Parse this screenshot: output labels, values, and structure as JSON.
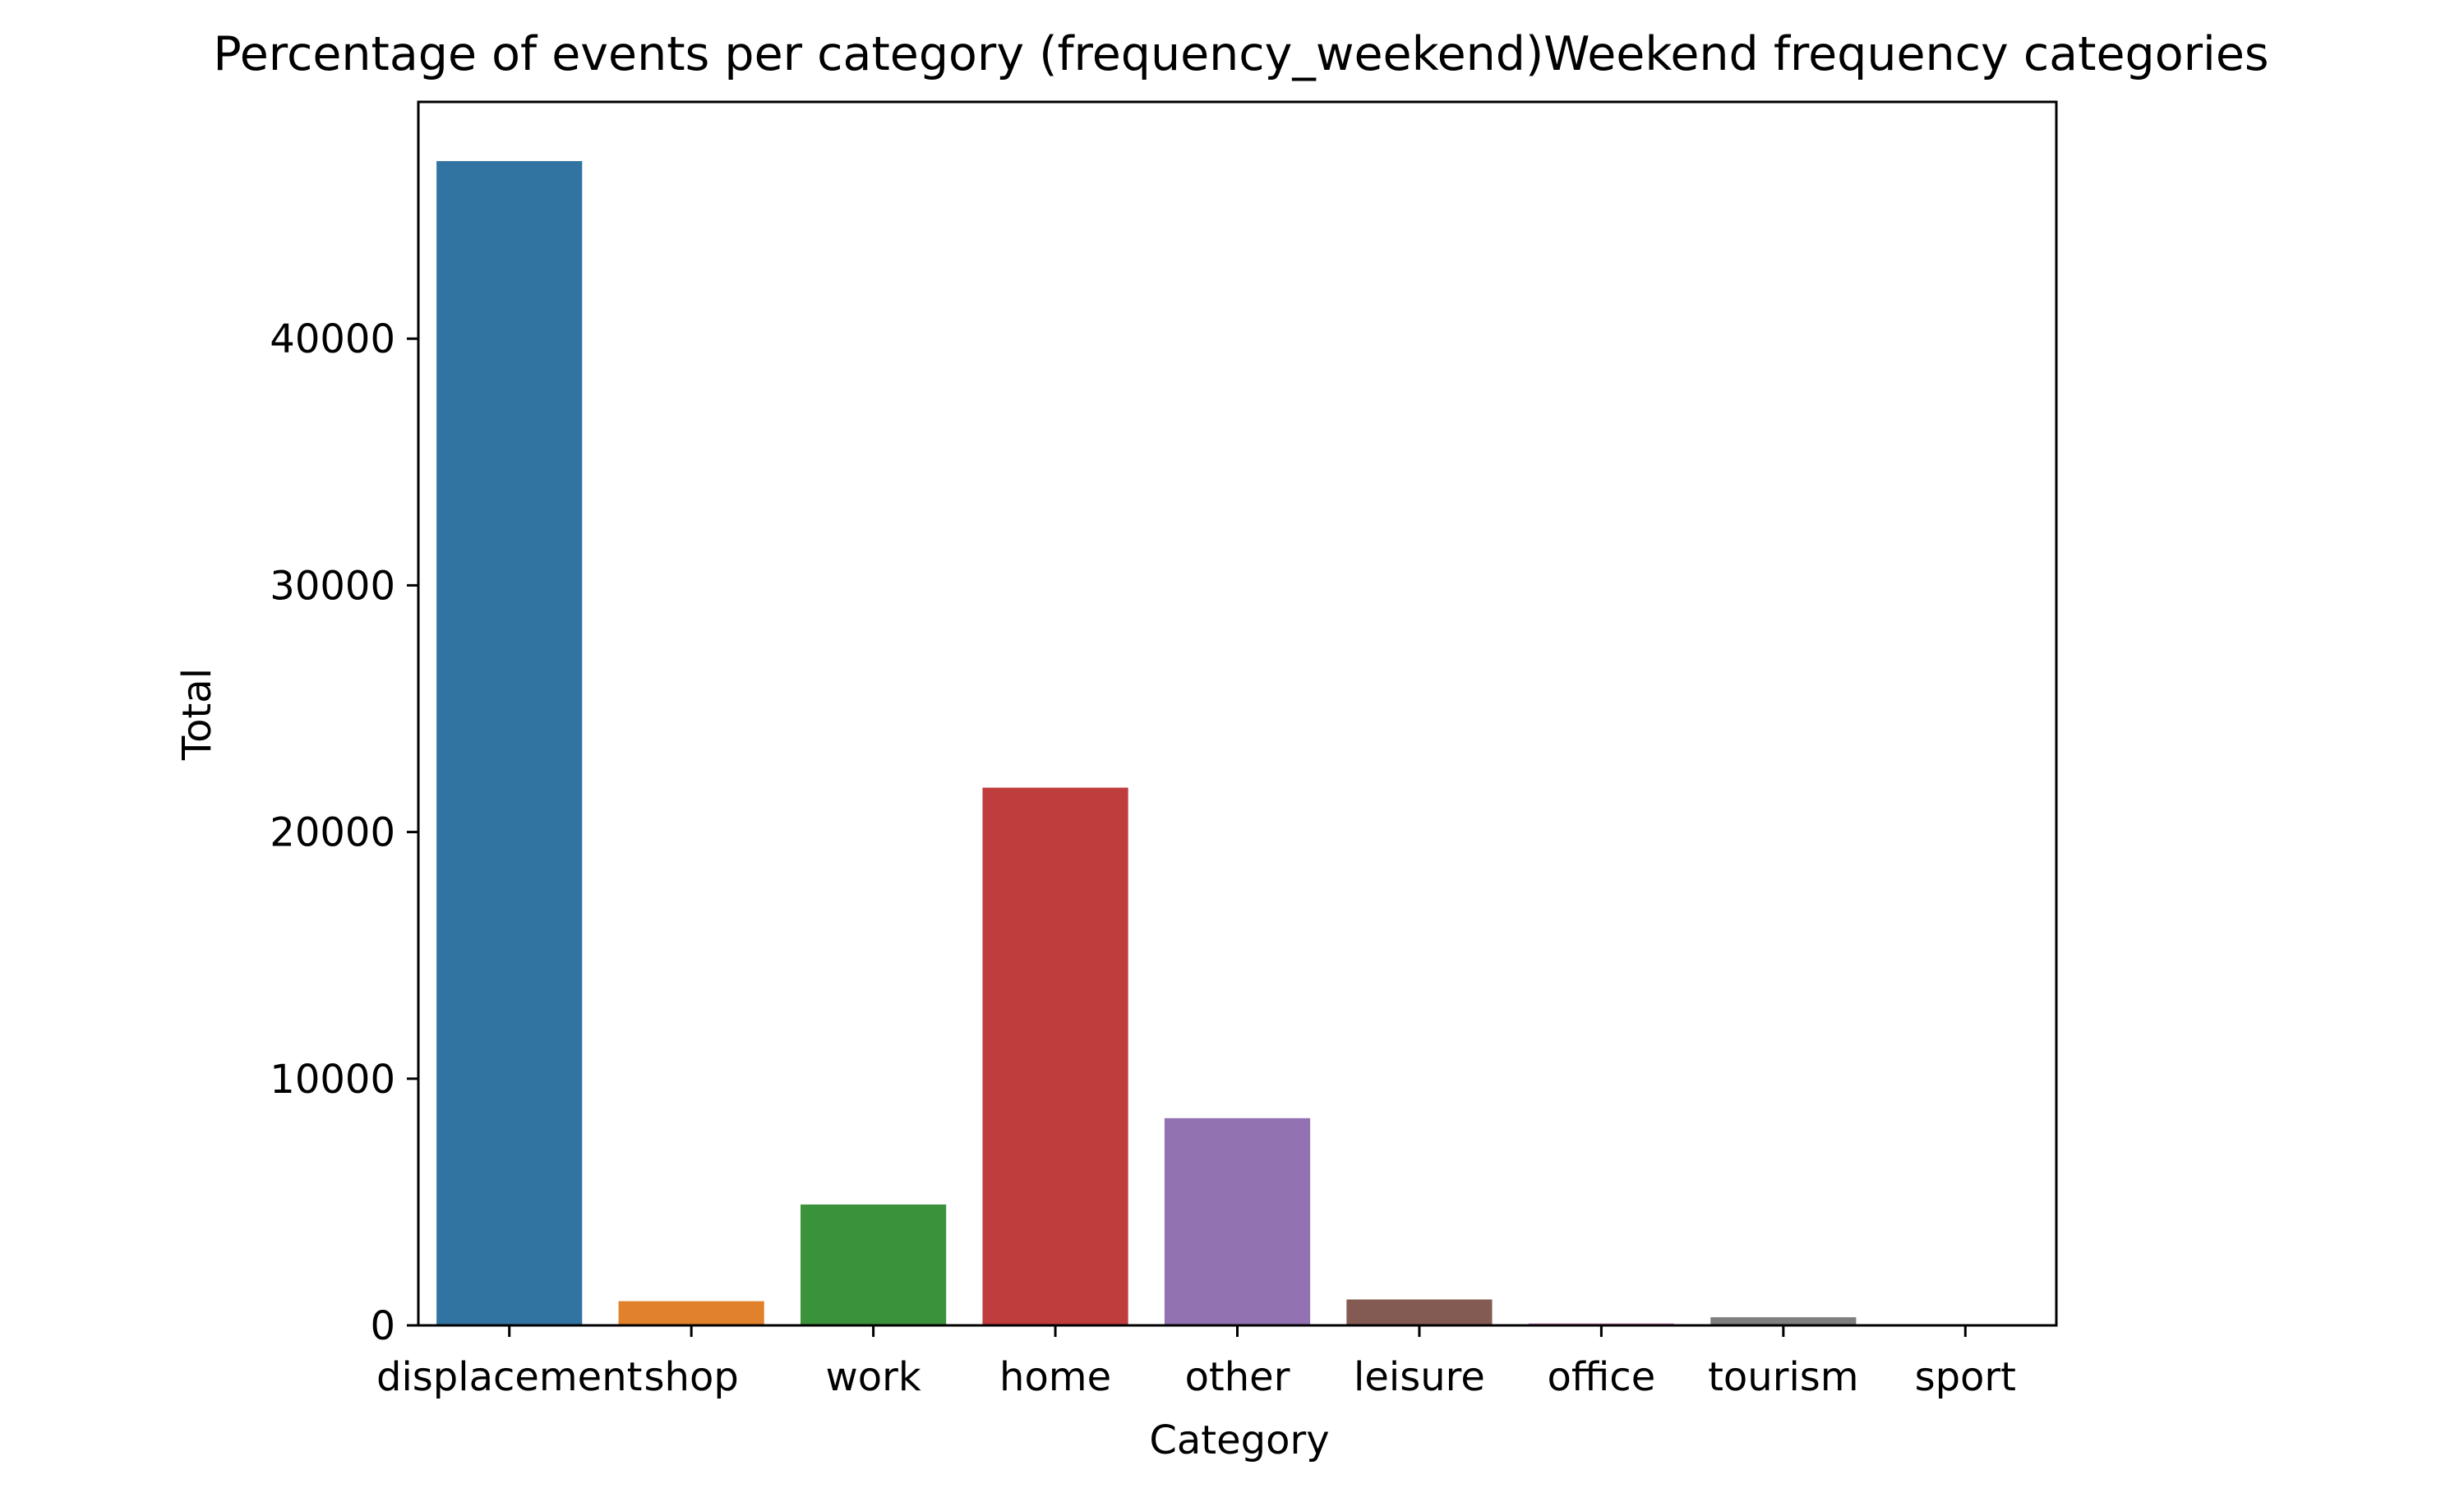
{
  "chart_data": {
    "type": "bar",
    "title": "Percentage of events per category (frequency_weekend)Weekend frequency categories",
    "xlabel": "Category",
    "ylabel": "Total",
    "categories": [
      "displacement",
      "shop",
      "work",
      "home",
      "other",
      "leisure",
      "office",
      "tourism",
      "sport"
    ],
    "values": [
      47200,
      980,
      4900,
      21800,
      8400,
      1050,
      80,
      330,
      20
    ],
    "colors": [
      "#3274a1",
      "#e1812c",
      "#3a923a",
      "#c03d3e",
      "#9372b2",
      "#845b53",
      "#d684bd",
      "#7f7f7f",
      "#a9aa35"
    ],
    "yticks": [
      0,
      10000,
      20000,
      30000,
      40000
    ],
    "ytick_labels": [
      "0",
      "10000",
      "20000",
      "30000",
      "40000"
    ],
    "ylim": [
      0,
      49600
    ],
    "grid": false,
    "legend": "none"
  }
}
